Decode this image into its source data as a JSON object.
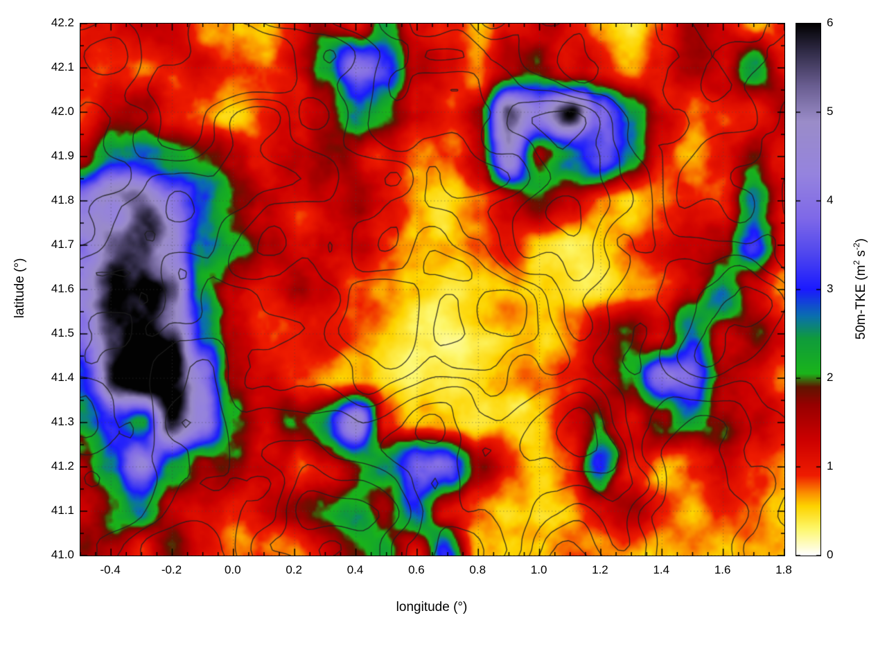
{
  "chart_data": {
    "type": "heatmap",
    "title": "",
    "xlabel": "longitude (°)",
    "ylabel": "latitude (°)",
    "colorbar_label": "50m-TKE (m2 s-2)",
    "colorbar_label_parts": {
      "pre": "50m-TKE (m",
      "sup1": "2",
      "mid": " s",
      "sup2": "-2",
      "post": ")"
    },
    "xlim": [
      -0.5,
      1.8
    ],
    "ylim": [
      41.0,
      42.2
    ],
    "clim": [
      0,
      6
    ],
    "x_tick_values": [
      -0.4,
      -0.2,
      0.0,
      0.2,
      0.4,
      0.6,
      0.8,
      1.0,
      1.2,
      1.4,
      1.6,
      1.8
    ],
    "x_tick_labels": [
      "-0.4",
      "-0.2",
      "0.0",
      "0.2",
      "0.4",
      "0.6",
      "0.8",
      "1.0",
      "1.2",
      "1.4",
      "1.6",
      "1.8"
    ],
    "y_tick_values": [
      41.0,
      41.1,
      41.2,
      41.3,
      41.4,
      41.5,
      41.6,
      41.7,
      41.8,
      41.9,
      42.0,
      42.1,
      42.2
    ],
    "y_tick_labels": [
      "41.0",
      "41.1",
      "41.2",
      "41.3",
      "41.4",
      "41.5",
      "41.6",
      "41.7",
      "41.8",
      "41.9",
      "42.0",
      "42.1",
      "42.2"
    ],
    "colorbar_tick_values": [
      0,
      1,
      2,
      3,
      4,
      5,
      6
    ],
    "colorbar_tick_labels": [
      "0",
      "1",
      "2",
      "3",
      "4",
      "5",
      "6"
    ],
    "x_minor_step": 0.05,
    "y_minor_step": 0.05,
    "grid": "dotted",
    "contour_overlay": {
      "color": "#1e1e1e",
      "levels": 6
    },
    "colormap_stops": [
      [
        0.0,
        "#ffffff"
      ],
      [
        0.3,
        "#fdf76a"
      ],
      [
        0.55,
        "#fdd400"
      ],
      [
        0.7,
        "#fb8f00"
      ],
      [
        0.9,
        "#ef1c00"
      ],
      [
        1.3,
        "#cc0000"
      ],
      [
        1.7,
        "#970000"
      ],
      [
        1.9,
        "#5f1500"
      ],
      [
        2.05,
        "#1ab41a"
      ],
      [
        2.45,
        "#0f9b3c"
      ],
      [
        2.7,
        "#0a6fae"
      ],
      [
        3.0,
        "#1a1aff"
      ],
      [
        3.4,
        "#4f46ee"
      ],
      [
        3.8,
        "#7e68e8"
      ],
      [
        4.3,
        "#9583de"
      ],
      [
        4.9,
        "#9a8cc8"
      ],
      [
        5.3,
        "#6a5e91"
      ],
      [
        5.7,
        "#2f2a45"
      ],
      [
        6.0,
        "#020202"
      ]
    ],
    "grid_lon_start": -0.5,
    "grid_lon_step": 0.1,
    "grid_lat_start": 42.2,
    "grid_lat_step": -0.1,
    "values": [
      [
        1.1,
        0.9,
        1.3,
        1.1,
        0.7,
        0.9,
        0.6,
        1.0,
        1.8,
        1.2,
        3.2,
        1.4,
        0.9,
        0.5,
        1.1,
        1.3,
        1.0,
        0.7,
        0.4,
        0.9,
        1.3,
        1.2,
        0.9,
        1.2
      ],
      [
        1.3,
        1.0,
        0.7,
        0.9,
        1.2,
        0.8,
        0.9,
        1.2,
        2.2,
        4.2,
        3.6,
        1.5,
        1.2,
        0.7,
        1.4,
        1.8,
        1.2,
        0.9,
        0.6,
        1.1,
        1.5,
        1.0,
        2.6,
        1.1
      ],
      [
        1.0,
        1.5,
        1.9,
        1.3,
        0.9,
        0.6,
        0.8,
        1.1,
        1.5,
        2.6,
        2.0,
        1.1,
        0.9,
        1.8,
        5.2,
        4.6,
        5.6,
        3.6,
        2.0,
        1.1,
        0.8,
        1.3,
        1.0,
        1.5
      ],
      [
        1.5,
        2.3,
        2.5,
        2.1,
        1.7,
        1.3,
        1.0,
        1.5,
        1.9,
        1.5,
        1.1,
        0.7,
        0.9,
        1.7,
        4.6,
        1.6,
        2.4,
        3.1,
        2.2,
        1.0,
        0.6,
        1.1,
        1.7,
        1.1
      ],
      [
        3.6,
        4.4,
        4.6,
        3.6,
        2.5,
        2.1,
        1.5,
        1.1,
        1.5,
        1.9,
        1.3,
        0.8,
        0.5,
        0.7,
        1.1,
        1.7,
        1.2,
        0.7,
        0.5,
        0.8,
        1.1,
        1.0,
        2.8,
        1.5
      ],
      [
        4.4,
        5.7,
        5.3,
        4.6,
        2.6,
        2.2,
        1.5,
        1.3,
        1.6,
        1.3,
        0.9,
        0.6,
        0.5,
        0.6,
        0.8,
        0.5,
        0.4,
        0.5,
        0.7,
        0.9,
        1.1,
        1.5,
        3.1,
        1.3
      ],
      [
        5.0,
        6.0,
        5.4,
        4.8,
        2.5,
        1.7,
        1.2,
        1.5,
        1.3,
        0.8,
        0.6,
        0.5,
        0.4,
        0.5,
        0.6,
        0.4,
        0.3,
        0.4,
        0.6,
        0.9,
        1.3,
        2.5,
        1.2,
        0.9
      ],
      [
        4.4,
        5.9,
        6.0,
        5.2,
        2.7,
        1.5,
        1.0,
        0.8,
        0.9,
        0.7,
        0.5,
        0.4,
        0.3,
        0.4,
        0.5,
        0.4,
        0.7,
        1.2,
        1.5,
        1.1,
        2.6,
        1.3,
        1.7,
        1.1
      ],
      [
        3.1,
        5.5,
        6.0,
        5.8,
        4.4,
        1.7,
        1.1,
        0.8,
        0.6,
        0.5,
        0.4,
        0.3,
        0.3,
        0.4,
        0.5,
        0.6,
        0.9,
        1.3,
        2.0,
        4.0,
        3.8,
        1.7,
        1.1,
        0.8
      ],
      [
        2.3,
        3.1,
        2.3,
        5.2,
        4.2,
        1.9,
        1.2,
        2.1,
        2.5,
        4.4,
        0.9,
        0.6,
        0.5,
        0.4,
        0.5,
        0.8,
        1.3,
        1.7,
        1.2,
        2.2,
        2.6,
        1.9,
        1.3,
        0.9
      ],
      [
        1.7,
        2.7,
        4.2,
        2.3,
        1.5,
        1.9,
        1.3,
        1.1,
        1.5,
        1.9,
        2.7,
        4.2,
        3.8,
        1.7,
        0.9,
        0.6,
        0.9,
        3.3,
        1.3,
        0.7,
        1.1,
        1.5,
        0.9,
        0.6
      ],
      [
        1.3,
        1.9,
        2.5,
        1.5,
        1.1,
        0.9,
        1.3,
        1.7,
        2.1,
        2.5,
        1.7,
        2.9,
        1.3,
        0.9,
        0.6,
        0.5,
        0.7,
        1.1,
        1.5,
        0.9,
        0.7,
        0.9,
        0.7,
        0.6
      ],
      [
        1.5,
        1.2,
        0.9,
        1.5,
        0.9,
        0.7,
        0.9,
        0.7,
        1.1,
        1.5,
        2.1,
        0.9,
        3.0,
        0.6,
        0.5,
        0.6,
        0.9,
        0.7,
        0.6,
        0.7,
        0.8,
        0.7,
        0.7,
        0.6
      ]
    ]
  }
}
